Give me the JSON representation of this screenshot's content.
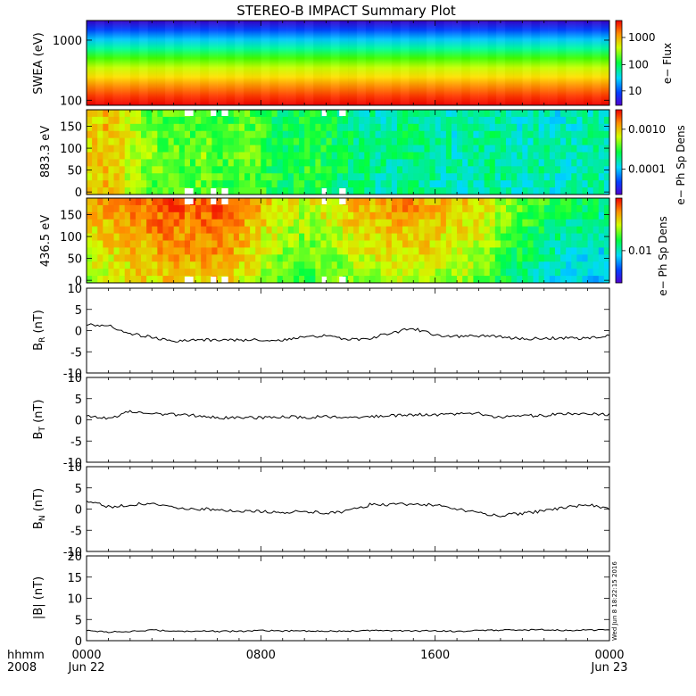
{
  "title": "STEREO-B IMPACT Summary Plot",
  "footer": {
    "left_top": "hhmm",
    "left_bottom": "2008",
    "stamp": "Wed Jun 8 18:22:15 2016"
  },
  "chart_data": [
    {
      "type": "heatmap",
      "ylabel": "SWEA (eV)",
      "y_scale": "log",
      "ylim": [
        100,
        2000
      ],
      "yticks": [
        "1000",
        "100"
      ],
      "colorbar": {
        "label": "e− Flux",
        "ticks": [
          "1000",
          "100",
          "10"
        ]
      },
      "profile_top_to_bottom": [
        "#3a00c8",
        "#0044ff",
        "#00c8ff",
        "#00ff9a",
        "#40ff00",
        "#c8ff00",
        "#ffe000",
        "#ff8a00",
        "#ff3a00",
        "#f00000"
      ]
    },
    {
      "type": "heatmap",
      "ylabel": "883.3 eV",
      "ylim": [
        0,
        180
      ],
      "yticks": [
        "150",
        "100",
        "50",
        "0"
      ],
      "colorbar": {
        "label": "e− Ph Sp Dens",
        "ticks": [
          "0.0010",
          "0.0001"
        ]
      },
      "x_profile": [
        0.72,
        0.78,
        0.7,
        0.62,
        0.58,
        0.56,
        0.54,
        0.6,
        0.52,
        0.58,
        0.56,
        0.5,
        0.48,
        0.52,
        0.5,
        0.46,
        0.44,
        0.42,
        0.4,
        0.44,
        0.42,
        0.4,
        0.38,
        0.4,
        0.42,
        0.4,
        0.38,
        0.4,
        0.36,
        0.38,
        0.4,
        0.38
      ]
    },
    {
      "type": "heatmap",
      "ylabel": "436.5 eV",
      "ylim": [
        0,
        180
      ],
      "yticks": [
        "150",
        "100",
        "50",
        "0"
      ],
      "colorbar": {
        "label": "e− Ph Sp Dens",
        "ticks": [
          "0.01"
        ]
      },
      "x_profile": [
        0.7,
        0.74,
        0.76,
        0.8,
        0.82,
        0.84,
        0.82,
        0.84,
        0.86,
        0.78,
        0.72,
        0.66,
        0.62,
        0.6,
        0.64,
        0.66,
        0.7,
        0.72,
        0.74,
        0.76,
        0.74,
        0.72,
        0.7,
        0.68,
        0.62,
        0.56,
        0.5,
        0.46,
        0.42,
        0.4,
        0.38,
        0.36
      ]
    },
    {
      "type": "line",
      "ylabel": "B_R (nT)",
      "ylim": [
        -10,
        10
      ],
      "yticks": [
        "10",
        "5",
        "0",
        "-5",
        "-10"
      ],
      "x": [
        0,
        1,
        2,
        3,
        4,
        5,
        6,
        7,
        8,
        9,
        10,
        11,
        12,
        13,
        14,
        15,
        16,
        17,
        18,
        19,
        20,
        21,
        22,
        23,
        24
      ],
      "values": [
        1.5,
        1.2,
        -0.8,
        -1.5,
        -2.5,
        -2.2,
        -2.2,
        -2.2,
        -2.2,
        -2.2,
        -1.5,
        -1.2,
        -2.2,
        -1.8,
        -0.5,
        0.5,
        -1.0,
        -1.4,
        -1.2,
        -1.5,
        -2.0,
        -1.8,
        -1.8,
        -1.8,
        -1.2
      ]
    },
    {
      "type": "line",
      "ylabel": "B_T (nT)",
      "ylim": [
        -10,
        10
      ],
      "yticks": [
        "10",
        "5",
        "0",
        "-5",
        "-10"
      ],
      "x": [
        0,
        1,
        2,
        3,
        4,
        5,
        6,
        7,
        8,
        9,
        10,
        11,
        12,
        13,
        14,
        15,
        16,
        17,
        18,
        19,
        20,
        21,
        22,
        23,
        24
      ],
      "values": [
        1.0,
        0.2,
        2.0,
        1.5,
        1.2,
        1.0,
        0.5,
        0.5,
        0.5,
        0.8,
        0.5,
        0.8,
        0.5,
        0.8,
        1.0,
        1.2,
        1.2,
        1.5,
        1.5,
        0.5,
        1.0,
        1.0,
        1.5,
        1.5,
        1.2
      ]
    },
    {
      "type": "line",
      "ylabel": "B_N (nT)",
      "ylim": [
        -10,
        10
      ],
      "yticks": [
        "10",
        "5",
        "0",
        "-5",
        "-10"
      ],
      "x": [
        0,
        1,
        2,
        3,
        4,
        5,
        6,
        7,
        8,
        9,
        10,
        11,
        12,
        13,
        14,
        15,
        16,
        17,
        18,
        19,
        20,
        21,
        22,
        23,
        24
      ],
      "values": [
        2.0,
        0.5,
        1.0,
        1.5,
        0.5,
        0.0,
        0.0,
        -0.5,
        -0.5,
        -0.8,
        -0.5,
        -1.0,
        -0.5,
        1.0,
        1.0,
        1.2,
        1.0,
        0.0,
        -1.0,
        -1.5,
        -1.0,
        -0.5,
        0.5,
        1.0,
        0.0
      ]
    },
    {
      "type": "line",
      "ylabel": "|B| (nT)",
      "ylim": [
        0,
        20
      ],
      "yticks": [
        "20",
        "15",
        "10",
        "5",
        "0"
      ],
      "x": [
        0,
        1,
        2,
        3,
        4,
        5,
        6,
        7,
        8,
        9,
        10,
        11,
        12,
        13,
        14,
        15,
        16,
        17,
        18,
        19,
        20,
        21,
        22,
        23,
        24
      ],
      "values": [
        2.5,
        2.0,
        2.2,
        2.5,
        2.2,
        2.3,
        2.2,
        2.2,
        2.4,
        2.3,
        2.3,
        2.2,
        2.3,
        2.4,
        2.4,
        2.3,
        2.3,
        2.2,
        2.4,
        2.5,
        2.5,
        2.6,
        2.4,
        2.5,
        2.6
      ]
    }
  ],
  "x_axis": {
    "ticks": [
      {
        "hour": 0,
        "label": "0000"
      },
      {
        "hour": 8,
        "label": "0800"
      },
      {
        "hour": 16,
        "label": "1600"
      },
      {
        "hour": 24,
        "label": "0000"
      }
    ],
    "dates": [
      {
        "hour": 0,
        "label": "Jun 22"
      },
      {
        "hour": 24,
        "label": "Jun 23"
      }
    ]
  },
  "colors": {
    "line": "#000000",
    "background": "#ffffff",
    "gap": "#ffffff"
  }
}
